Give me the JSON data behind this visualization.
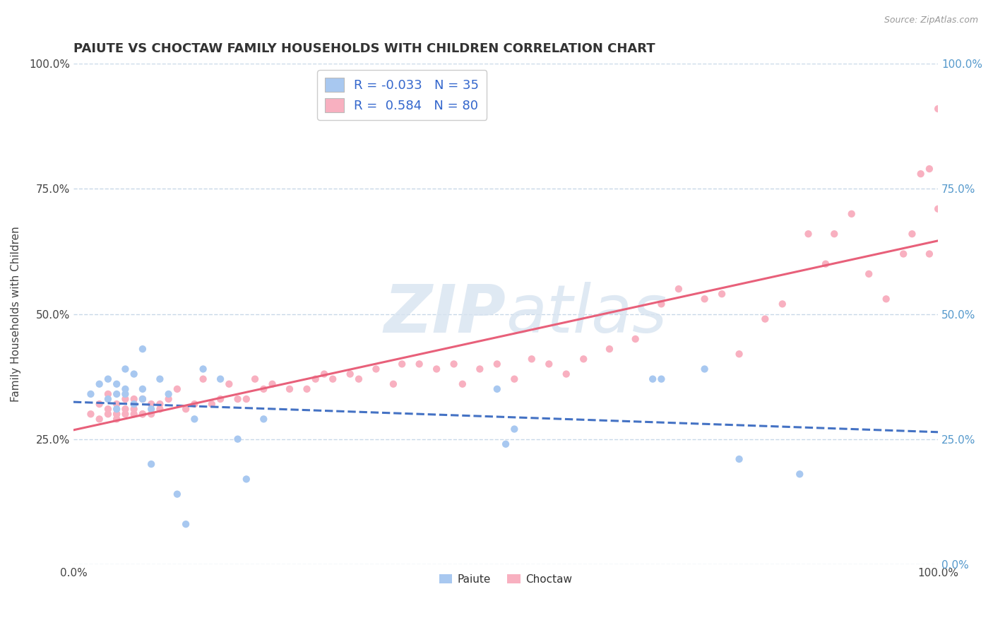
{
  "title": "PAIUTE VS CHOCTAW FAMILY HOUSEHOLDS WITH CHILDREN CORRELATION CHART",
  "source": "Source: ZipAtlas.com",
  "ylabel": "Family Households with Children",
  "xlim": [
    0.0,
    1.0
  ],
  "ylim": [
    0.0,
    1.0
  ],
  "ytick_values": [
    0.0,
    0.25,
    0.5,
    0.75,
    1.0
  ],
  "ytick_labels_left": [
    "",
    "25.0%",
    "50.0%",
    "75.0%",
    "100.0%"
  ],
  "ytick_labels_right": [
    "0.0%",
    "25.0%",
    "50.0%",
    "75.0%",
    "100.0%"
  ],
  "xtick_values": [
    0.0,
    1.0
  ],
  "xtick_labels": [
    "0.0%",
    "100.0%"
  ],
  "paiute_R": -0.033,
  "paiute_N": 35,
  "choctaw_R": 0.584,
  "choctaw_N": 80,
  "paiute_color": "#a8c8f0",
  "choctaw_color": "#f8b0c0",
  "paiute_line_color": "#4472c4",
  "choctaw_line_color": "#e8607a",
  "background_color": "#ffffff",
  "grid_color": "#c8d8e8",
  "watermark_color": "#d8e4f0",
  "title_fontsize": 13,
  "label_fontsize": 11,
  "tick_fontsize": 11,
  "legend_fontsize": 13,
  "right_tick_color": "#5599cc",
  "paiute_x": [
    0.02,
    0.03,
    0.04,
    0.04,
    0.05,
    0.05,
    0.05,
    0.06,
    0.06,
    0.06,
    0.07,
    0.07,
    0.08,
    0.08,
    0.08,
    0.09,
    0.09,
    0.1,
    0.11,
    0.12,
    0.13,
    0.14,
    0.15,
    0.17,
    0.19,
    0.2,
    0.22,
    0.49,
    0.5,
    0.51,
    0.67,
    0.68,
    0.73,
    0.77,
    0.84
  ],
  "paiute_y": [
    0.34,
    0.36,
    0.37,
    0.33,
    0.31,
    0.34,
    0.36,
    0.39,
    0.35,
    0.34,
    0.32,
    0.38,
    0.35,
    0.33,
    0.43,
    0.2,
    0.31,
    0.37,
    0.34,
    0.14,
    0.08,
    0.29,
    0.39,
    0.37,
    0.25,
    0.17,
    0.29,
    0.35,
    0.24,
    0.27,
    0.37,
    0.37,
    0.39,
    0.21,
    0.18
  ],
  "choctaw_x": [
    0.02,
    0.03,
    0.03,
    0.04,
    0.04,
    0.04,
    0.05,
    0.05,
    0.05,
    0.05,
    0.06,
    0.06,
    0.06,
    0.07,
    0.07,
    0.07,
    0.07,
    0.08,
    0.08,
    0.08,
    0.09,
    0.09,
    0.1,
    0.1,
    0.11,
    0.12,
    0.13,
    0.14,
    0.15,
    0.16,
    0.17,
    0.18,
    0.19,
    0.2,
    0.21,
    0.22,
    0.23,
    0.25,
    0.27,
    0.28,
    0.29,
    0.3,
    0.32,
    0.33,
    0.35,
    0.37,
    0.38,
    0.4,
    0.42,
    0.44,
    0.45,
    0.47,
    0.49,
    0.51,
    0.53,
    0.55,
    0.57,
    0.59,
    0.62,
    0.65,
    0.68,
    0.7,
    0.73,
    0.75,
    0.77,
    0.8,
    0.82,
    0.85,
    0.87,
    0.88,
    0.9,
    0.92,
    0.94,
    0.96,
    0.97,
    0.98,
    0.99,
    0.99,
    1.0,
    1.0
  ],
  "choctaw_y": [
    0.3,
    0.32,
    0.29,
    0.3,
    0.31,
    0.34,
    0.3,
    0.3,
    0.29,
    0.32,
    0.3,
    0.31,
    0.33,
    0.3,
    0.31,
    0.32,
    0.33,
    0.3,
    0.3,
    0.33,
    0.3,
    0.32,
    0.32,
    0.31,
    0.33,
    0.35,
    0.31,
    0.32,
    0.37,
    0.32,
    0.33,
    0.36,
    0.33,
    0.33,
    0.37,
    0.35,
    0.36,
    0.35,
    0.35,
    0.37,
    0.38,
    0.37,
    0.38,
    0.37,
    0.39,
    0.36,
    0.4,
    0.4,
    0.39,
    0.4,
    0.36,
    0.39,
    0.4,
    0.37,
    0.41,
    0.4,
    0.38,
    0.41,
    0.43,
    0.45,
    0.52,
    0.55,
    0.53,
    0.54,
    0.42,
    0.49,
    0.52,
    0.66,
    0.6,
    0.66,
    0.7,
    0.58,
    0.53,
    0.62,
    0.66,
    0.78,
    0.62,
    0.79,
    0.71,
    0.91
  ]
}
